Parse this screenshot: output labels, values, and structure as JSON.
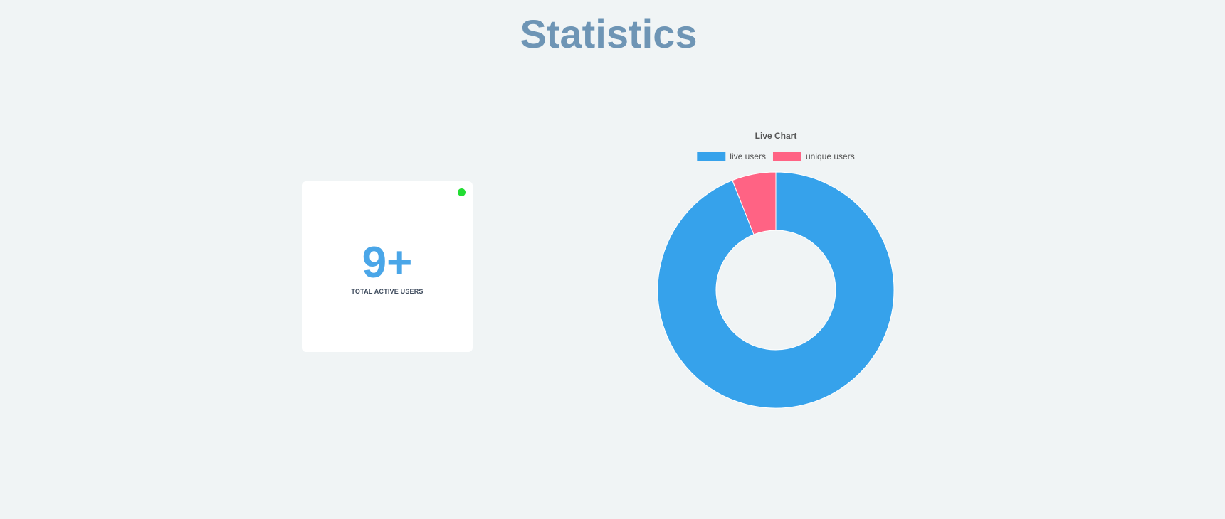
{
  "page": {
    "title": "Statistics"
  },
  "stat_card": {
    "value": "9+",
    "label": "TOTAL ACTIVE USERS",
    "status_color": "#22dd33"
  },
  "colors": {
    "accent": "#4aa6e8",
    "title": "#6e95b5",
    "background": "#f0f4f5"
  },
  "chart_data": {
    "type": "doughnut",
    "title": "Live Chart",
    "legend_position": "top",
    "categories": [
      "live users",
      "unique users"
    ],
    "values": [
      94,
      6
    ],
    "colors": [
      "#36a2eb",
      "#ff6384"
    ]
  }
}
